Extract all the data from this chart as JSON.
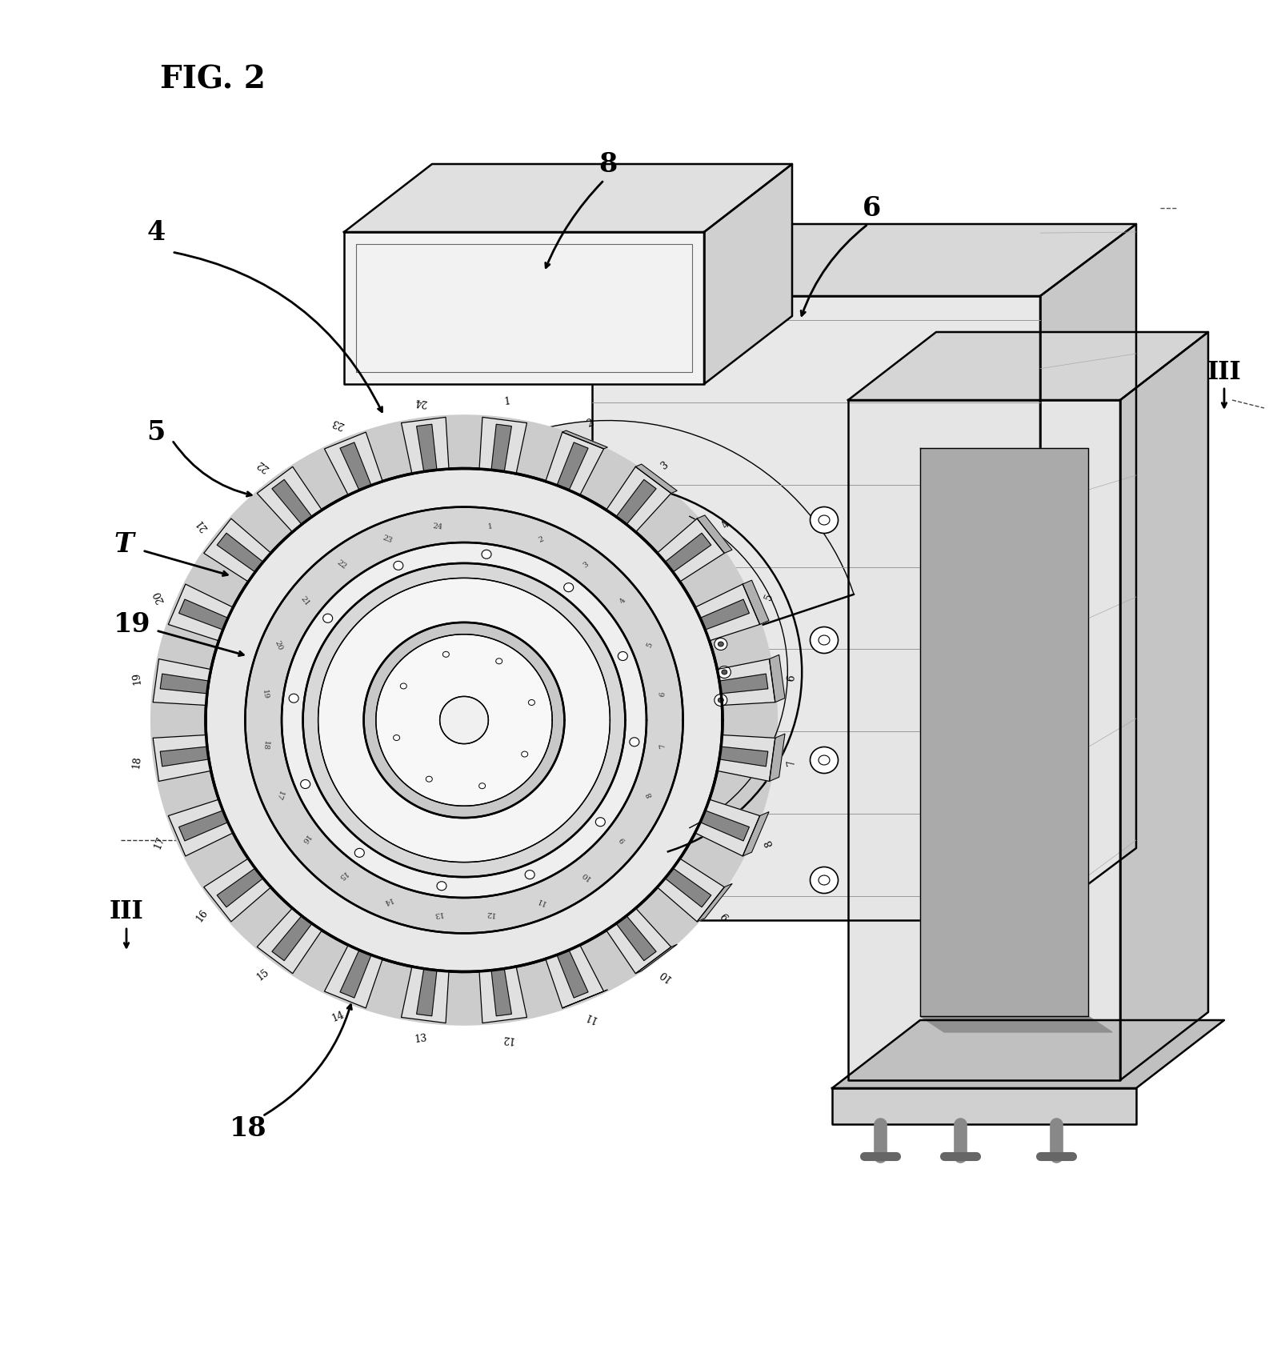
{
  "title": "FIG. 2",
  "background_color": "#ffffff",
  "fig_width": 16.01,
  "fig_height": 16.86,
  "labels": {
    "fig_label": "FIG. 2",
    "label_4": "4",
    "label_5": "5",
    "label_6": "6",
    "label_8": "8",
    "label_T": "T",
    "label_18": "18",
    "label_19": "19",
    "label_III_top": "III",
    "label_III_bot": "III"
  }
}
